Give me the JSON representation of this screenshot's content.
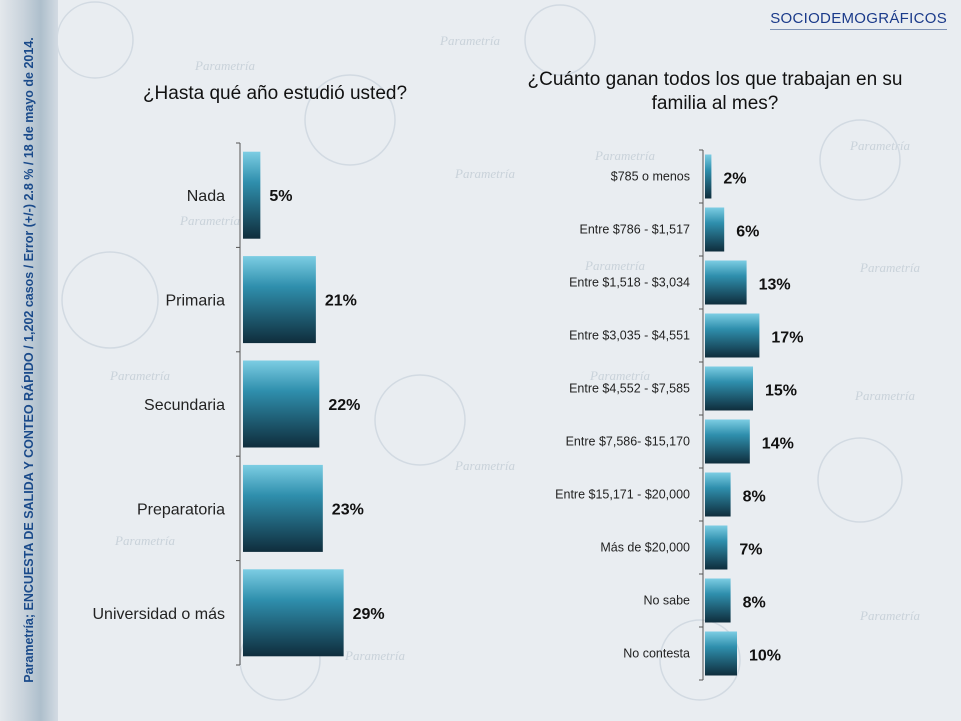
{
  "header": {
    "section_label": "SOCIODEMOGRÁFICOS"
  },
  "sidebar": {
    "source_note": "Parametría; ENCUESTA DE SALIDA Y CONTEO RÁPIDO / 1,202 casos / Error (+/-)  2.8 % / 18 de mayo de 2014."
  },
  "background": {
    "watermark_word": "Parametría"
  },
  "chart_data": [
    {
      "type": "bar",
      "orientation": "horizontal",
      "title": "¿Hasta qué año estudió usted?",
      "categories": [
        "Nada",
        "Primaria",
        "Secundaria",
        "Preparatoria",
        "Universidad o más"
      ],
      "values": [
        5,
        21,
        22,
        23,
        29
      ],
      "value_labels": [
        "5%",
        "21%",
        "22%",
        "23%",
        "29%"
      ],
      "xlim": [
        0,
        100
      ],
      "unit": "%",
      "bar_color": "#2f8fad"
    },
    {
      "type": "bar",
      "orientation": "horizontal",
      "title": "¿Cuánto ganan todos los que trabajan en su familia al mes?",
      "categories": [
        "$785 o menos",
        "Entre $786 - $1,517",
        "Entre $1,518 - $3,034",
        "Entre $3,035 - $4,551",
        "Entre $4,552 - $7,585",
        "Entre $7,586- $15,170",
        "Entre $15,171 - $20,000",
        "Más de $20,000",
        "No sabe",
        "No contesta"
      ],
      "values": [
        2,
        6,
        13,
        17,
        15,
        14,
        8,
        7,
        8,
        10
      ],
      "value_labels": [
        "2%",
        "6%",
        "13%",
        "17%",
        "15%",
        "14%",
        "8%",
        "7%",
        "8%",
        "10%"
      ],
      "xlim": [
        0,
        100
      ],
      "unit": "%",
      "bar_color": "#2f8fad"
    }
  ]
}
